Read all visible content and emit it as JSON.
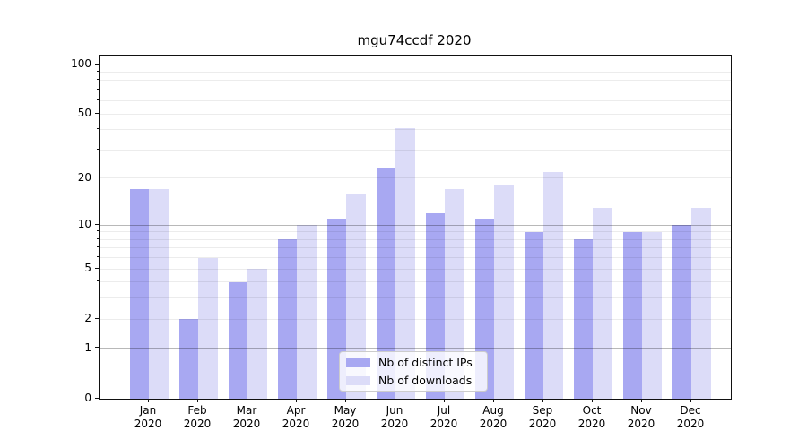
{
  "title": "mgu74ccdf 2020",
  "chart_data": {
    "type": "bar",
    "title": "mgu74ccdf 2020",
    "categories": [
      "Jan 2020",
      "Feb 2020",
      "Mar 2020",
      "Apr 2020",
      "May 2020",
      "Jun 2020",
      "Jul 2020",
      "Aug 2020",
      "Sep 2020",
      "Oct 2020",
      "Nov 2020",
      "Dec 2020"
    ],
    "series": [
      {
        "name": "Nb of distinct IPs",
        "color": "#a8a8f2",
        "values": [
          17,
          2,
          4,
          8,
          11,
          23,
          12,
          11,
          9,
          8,
          9,
          10
        ]
      },
      {
        "name": "Nb of downloads",
        "color": "#dcdcf8",
        "values": [
          17,
          6,
          5,
          10,
          16,
          41,
          17,
          18,
          22,
          13,
          9,
          13
        ]
      }
    ],
    "yscale": "log10(1+v)",
    "ylim": [
      0,
      100
    ],
    "ytick_labels": [
      "0",
      "1",
      "2",
      "5",
      "10",
      "20",
      "50",
      "100"
    ],
    "ytick_values": [
      0,
      1,
      2,
      5,
      10,
      20,
      50,
      100
    ],
    "major_gridlines": [
      1,
      10,
      100
    ],
    "minor_gridlines": [
      2,
      3,
      4,
      5,
      6,
      7,
      8,
      9,
      20,
      30,
      40,
      50,
      60,
      70,
      80,
      90
    ],
    "grid": true,
    "legend_position": "lower center",
    "legend_entries": [
      "Nb of distinct IPs",
      "Nb of downloads"
    ]
  }
}
